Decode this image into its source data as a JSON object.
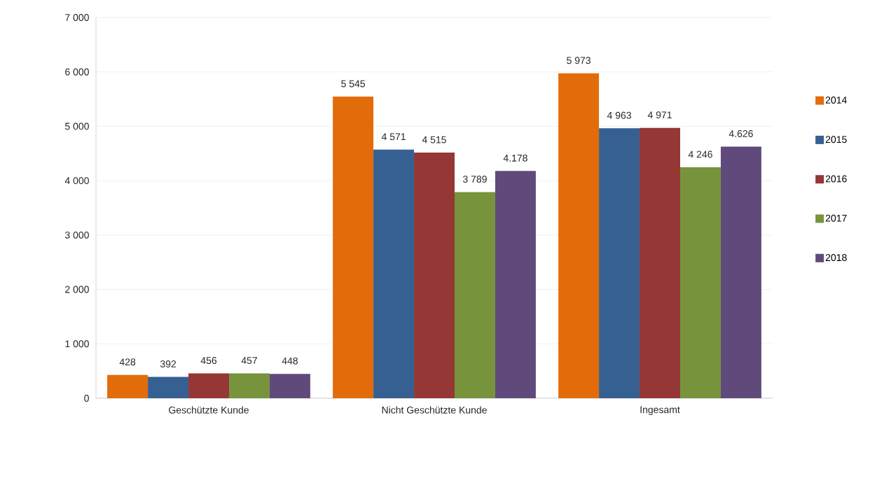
{
  "chart_data": {
    "type": "bar",
    "categories": [
      "Geschützte Kunde",
      "Nicht Geschützte Kunde",
      "Ingesamt"
    ],
    "series": [
      {
        "name": "2014",
        "color": "#e36c0a",
        "values": [
          428,
          5545,
          5973
        ],
        "value_labels": [
          "428",
          "5 545",
          "5 973"
        ]
      },
      {
        "name": "2015",
        "color": "#376092",
        "values": [
          392,
          4571,
          4963
        ],
        "value_labels": [
          "392",
          "4 571",
          "4 963"
        ]
      },
      {
        "name": "2016",
        "color": "#953735",
        "values": [
          456,
          4515,
          4971
        ],
        "value_labels": [
          "456",
          "4 515",
          "4 971"
        ]
      },
      {
        "name": "2017",
        "color": "#77933c",
        "values": [
          457,
          3789,
          4246
        ],
        "value_labels": [
          "457",
          "3 789",
          "4 246"
        ]
      },
      {
        "name": "2018",
        "color": "#604a7b",
        "values": [
          448,
          4178,
          4626
        ],
        "value_labels": [
          "448",
          "4.178",
          "4.626"
        ]
      }
    ],
    "ylim": [
      0,
      7000
    ],
    "yticks": [
      0,
      {
        "value": 1000,
        "label": "1 000"
      },
      {
        "value": 2000,
        "label": "2 000"
      },
      {
        "value": 3000,
        "label": "3 000"
      },
      {
        "value": 4000,
        "label": "4 000"
      },
      {
        "value": 5000,
        "label": "5 000"
      },
      {
        "value": 6000,
        "label": "6 000"
      },
      {
        "value": 7000,
        "label": "7 000"
      }
    ],
    "grid": "y",
    "legend": "right"
  }
}
